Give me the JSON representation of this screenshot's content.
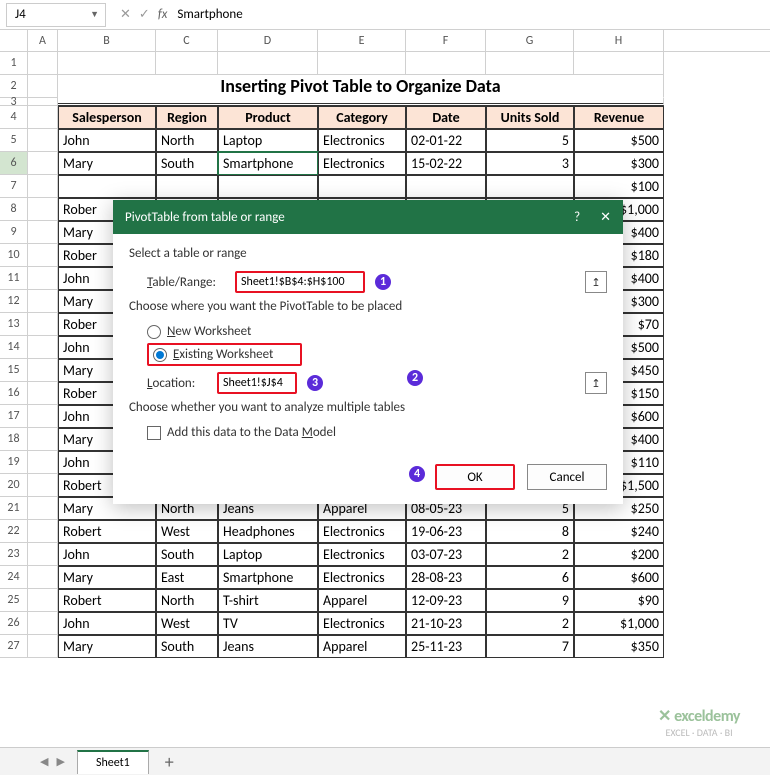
{
  "formula": {
    "cellRef": "J4",
    "value": "Smartphone"
  },
  "columns": [
    "A",
    "B",
    "C",
    "D",
    "E",
    "F",
    "G",
    "H"
  ],
  "titleRow": "Inserting Pivot Table to Organize Data",
  "headers": [
    "Salesperson",
    "Region",
    "Product",
    "Category",
    "Date",
    "Units Sold",
    "Revenue"
  ],
  "rows": [
    {
      "n": 5,
      "d": [
        "John",
        "North",
        "Laptop",
        "Electronics",
        "02-01-22",
        "5",
        "$500"
      ]
    },
    {
      "n": 6,
      "d": [
        "Mary",
        "South",
        "Smartphone",
        "Electronics",
        "15-02-22",
        "3",
        "$300"
      ]
    },
    {
      "n": 7,
      "d": [
        "",
        "",
        "",
        "",
        "",
        "",
        "$100"
      ]
    },
    {
      "n": 8,
      "d": [
        "Rober",
        "",
        "",
        "",
        "",
        "",
        "$1,000"
      ]
    },
    {
      "n": 9,
      "d": [
        "Mary",
        "",
        "",
        "",
        "",
        "",
        "$400"
      ]
    },
    {
      "n": 10,
      "d": [
        "Rober",
        "",
        "",
        "",
        "",
        "",
        "$180"
      ]
    },
    {
      "n": 11,
      "d": [
        "John",
        "",
        "",
        "",
        "",
        "",
        "$400"
      ]
    },
    {
      "n": 12,
      "d": [
        "Mary",
        "",
        "",
        "",
        "",
        "",
        "$300"
      ]
    },
    {
      "n": 13,
      "d": [
        "Rober",
        "",
        "",
        "",
        "",
        "",
        "$70"
      ]
    },
    {
      "n": 14,
      "d": [
        "John",
        "",
        "",
        "",
        "",
        "",
        "$500"
      ]
    },
    {
      "n": 15,
      "d": [
        "Mary",
        "",
        "",
        "",
        "",
        "",
        "$450"
      ]
    },
    {
      "n": 16,
      "d": [
        "Rober",
        "",
        "",
        "",
        "",
        "",
        "$150"
      ]
    },
    {
      "n": 17,
      "d": [
        "John",
        "",
        "",
        "",
        "",
        "",
        "$600"
      ]
    },
    {
      "n": 18,
      "d": [
        "Mary",
        "",
        "",
        "",
        "",
        "",
        "$400"
      ]
    },
    {
      "n": 19,
      "d": [
        "John",
        "",
        "",
        "",
        "",
        "",
        "$110"
      ]
    },
    {
      "n": 20,
      "d": [
        "Robert",
        "",
        "",
        "",
        "",
        "",
        "$1,500"
      ]
    },
    {
      "n": 21,
      "d": [
        "Mary",
        "North",
        "Jeans",
        "Apparel",
        "08-05-23",
        "5",
        "$250"
      ]
    },
    {
      "n": 22,
      "d": [
        "Robert",
        "West",
        "Headphones",
        "Electronics",
        "19-06-23",
        "8",
        "$240"
      ]
    },
    {
      "n": 23,
      "d": [
        "John",
        "South",
        "Laptop",
        "Electronics",
        "03-07-23",
        "2",
        "$200"
      ]
    },
    {
      "n": 24,
      "d": [
        "Mary",
        "East",
        "Smartphone",
        "Electronics",
        "28-08-23",
        "6",
        "$600"
      ]
    },
    {
      "n": 25,
      "d": [
        "Robert",
        "North",
        "T-shirt",
        "Apparel",
        "12-09-23",
        "9",
        "$90"
      ]
    },
    {
      "n": 26,
      "d": [
        "John",
        "West",
        "TV",
        "Electronics",
        "21-10-23",
        "2",
        "$1,000"
      ]
    },
    {
      "n": 27,
      "d": [
        "Mary",
        "South",
        "Jeans",
        "Apparel",
        "25-11-23",
        "7",
        "$350"
      ]
    }
  ],
  "dialog": {
    "title": "PivotTable from table or range",
    "section1": "Select a table or range",
    "tableRangeLabel": "Table/Range:",
    "tableRangeValue": "Sheet1!$B$4:$H$100",
    "section2": "Choose where you want the PivotTable to be placed",
    "newWorksheet": "New Worksheet",
    "existingWorksheet": "Existing Worksheet",
    "locationLabel": "Location:",
    "locationValue": "Sheet1!$J$4",
    "section3": "Choose whether you want to analyze multiple tables",
    "dataModel": "Add this data to the Data Model",
    "ok": "OK",
    "cancel": "Cancel"
  },
  "sheet": {
    "name": "Sheet1"
  },
  "watermark": {
    "logo": "exceldemy",
    "sub": "EXCEL · DATA · BI"
  },
  "badges": [
    "1",
    "2",
    "3",
    "4"
  ],
  "colWidths": {
    "A": 30,
    "B": 98,
    "C": 62,
    "D": 100,
    "E": 88,
    "F": 80,
    "G": 88,
    "H": 90
  }
}
